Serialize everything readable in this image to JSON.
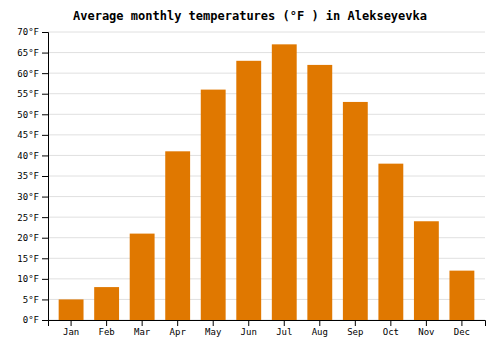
{
  "chart_data": {
    "type": "bar",
    "title": "Average monthly temperatures (°F ) in Alekseyevka",
    "categories": [
      "Jan",
      "Feb",
      "Mar",
      "Apr",
      "May",
      "Jun",
      "Jul",
      "Aug",
      "Sep",
      "Oct",
      "Nov",
      "Dec"
    ],
    "values": [
      5,
      8,
      21,
      41,
      56,
      63,
      67,
      62,
      53,
      38,
      24,
      12
    ],
    "color": "#E07800",
    "ylim": [
      0,
      70
    ],
    "yticks": [
      {
        "value": 0,
        "label": "0°F"
      },
      {
        "value": 5,
        "label": "5°F"
      },
      {
        "value": 10,
        "label": "10°F"
      },
      {
        "value": 15,
        "label": "15°F"
      },
      {
        "value": 20,
        "label": "20°F"
      },
      {
        "value": 25,
        "label": "25°F"
      },
      {
        "value": 30,
        "label": "30°F"
      },
      {
        "value": 35,
        "label": "35°F"
      },
      {
        "value": 40,
        "label": "40°F"
      },
      {
        "value": 45,
        "label": "45°F"
      },
      {
        "value": 50,
        "label": "50°F"
      },
      {
        "value": 55,
        "label": "55°F"
      },
      {
        "value": 60,
        "label": "60°F"
      },
      {
        "value": 65,
        "label": "65°F"
      },
      {
        "value": 70,
        "label": "70°F"
      }
    ],
    "grid": true
  }
}
